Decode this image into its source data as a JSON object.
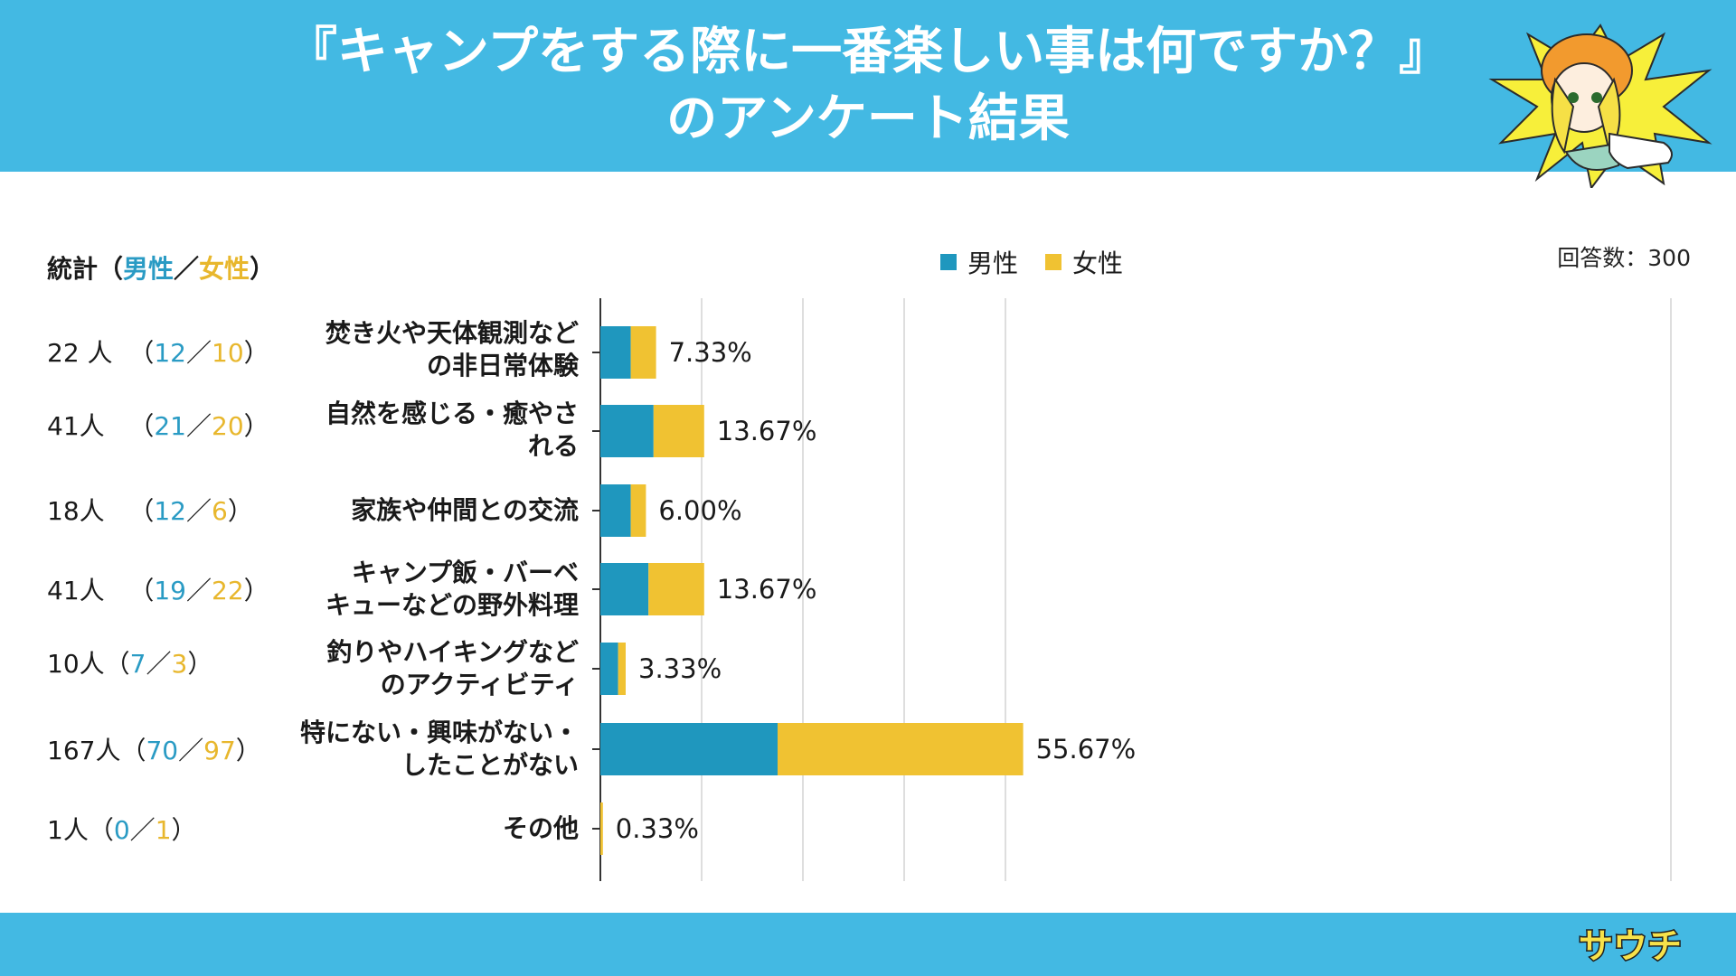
{
  "header": {
    "title_line1": "『キャンプをする際に一番楽しい事は何ですか？』",
    "title_line2": "のアンケート結果",
    "bg_color": "#43b9e3",
    "mascot_icon": "pointing-girl-mascot-icon"
  },
  "stats_header": {
    "prefix": "統計（",
    "male": "男性",
    "sep": "／",
    "female": "女性",
    "suffix": "）"
  },
  "legend": {
    "male": "男性",
    "female": "女性"
  },
  "respondents": "回答数：300",
  "stats": [
    {
      "total": "22 人",
      "open": "（",
      "male": "12",
      "sep": "／",
      "female": "10",
      "close": "）"
    },
    {
      "total": "41人",
      "open": "（",
      "male": "21",
      "sep": "／",
      "female": "20",
      "close": "）"
    },
    {
      "total": "18人",
      "open": "（",
      "male": "12",
      "sep": "／",
      "female": "6",
      "close": "）"
    },
    {
      "total": "41人",
      "open": "（",
      "male": "19",
      "sep": "／",
      "female": "22",
      "close": "）"
    },
    {
      "total": "10人",
      "open": "（",
      "male": "7",
      "sep": "／",
      "female": "3",
      "close": "）"
    },
    {
      "total": "167人",
      "open": "（",
      "male": "70",
      "sep": "／",
      "female": "97",
      "close": "）"
    },
    {
      "total": "1人",
      "open": "（",
      "male": "0",
      "sep": "／",
      "female": "1",
      "close": "）"
    }
  ],
  "chart_data": {
    "type": "bar",
    "orientation": "horizontal",
    "stacked": true,
    "title": "『キャンプをする際に一番楽しい事は何ですか？』のアンケート結果",
    "categories": [
      [
        "焚き火や天体観測など",
        "の非日常体験"
      ],
      [
        "自然を感じる・癒やさ",
        "れる"
      ],
      [
        "家族や仲間との交流"
      ],
      [
        "キャンプ飯・バーベ",
        "キューなどの野外料理"
      ],
      [
        "釣りやハイキングなど",
        "のアクティビティ"
      ],
      [
        "特にない・興味がない・",
        "したことがない"
      ],
      [
        "その他"
      ]
    ],
    "series": [
      {
        "name": "男性",
        "color": "#1f97be",
        "values": [
          12,
          21,
          12,
          19,
          7,
          70,
          0
        ]
      },
      {
        "name": "女性",
        "color": "#f0c232",
        "values": [
          10,
          20,
          6,
          22,
          3,
          97,
          1
        ]
      }
    ],
    "data_labels": [
      "7.33%",
      "13.67%",
      "6.00%",
      "13.67%",
      "3.33%",
      "55.67%",
      "0.33%"
    ],
    "xlim": [
      0,
      180
    ],
    "grid": true,
    "legend": "top-center"
  },
  "brand": {
    "logo_text": "サウチ",
    "logo_icon": "sauchi-brand-logo"
  }
}
